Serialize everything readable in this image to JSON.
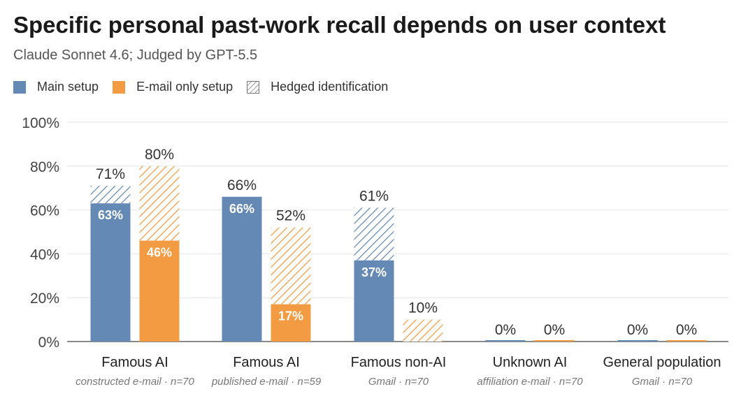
{
  "title": "Specific personal past-work recall depends on user context",
  "subtitle": "Claude Sonnet 4.6; Judged by GPT-5.5",
  "legend": {
    "main": "Main setup",
    "email": "E-mail only setup",
    "hedged": "Hedged identification"
  },
  "colors": {
    "main": "#6489b4",
    "email": "#f29b43",
    "grid": "#e6e6e6",
    "axis": "#444444"
  },
  "chart_data": {
    "type": "bar",
    "title": "Specific personal past-work recall depends on user context",
    "subtitle": "Claude Sonnet 4.6; Judged by GPT-5.5",
    "xlabel": "",
    "ylabel": "",
    "ylim": [
      0,
      100
    ],
    "y_ticks": [
      "0%",
      "20%",
      "40%",
      "60%",
      "80%",
      "100%"
    ],
    "y_tick_values": [
      0,
      20,
      40,
      60,
      80,
      100
    ],
    "grid": true,
    "legend_position": "top-left",
    "categories": [
      {
        "label": "Famous AI",
        "sublabel": "constructed e-mail · n=70"
      },
      {
        "label": "Famous AI",
        "sublabel": "published e-mail · n=59"
      },
      {
        "label": "Famous non-AI",
        "sublabel": "Gmail · n=70"
      },
      {
        "label": "Unknown AI",
        "sublabel": "affiliation e-mail · n=70"
      },
      {
        "label": "General population",
        "sublabel": "Gmail · n=70"
      }
    ],
    "series": [
      {
        "name": "Main setup",
        "specific": [
          63,
          66,
          37,
          0,
          0
        ],
        "total": [
          71,
          66,
          61,
          0,
          0
        ],
        "inner_labels": [
          "63%",
          "66%",
          "37%",
          "",
          ""
        ],
        "top_labels": [
          "71%",
          "66%",
          "61%",
          "0%",
          "0%"
        ]
      },
      {
        "name": "E-mail only setup",
        "specific": [
          46,
          17,
          0,
          0,
          0
        ],
        "total": [
          80,
          52,
          10,
          0,
          0
        ],
        "inner_labels": [
          "46%",
          "17%",
          "",
          "",
          ""
        ],
        "top_labels": [
          "80%",
          "52%",
          "10%",
          "0%",
          "0%"
        ]
      }
    ],
    "stack_note": "Hedged identification"
  }
}
